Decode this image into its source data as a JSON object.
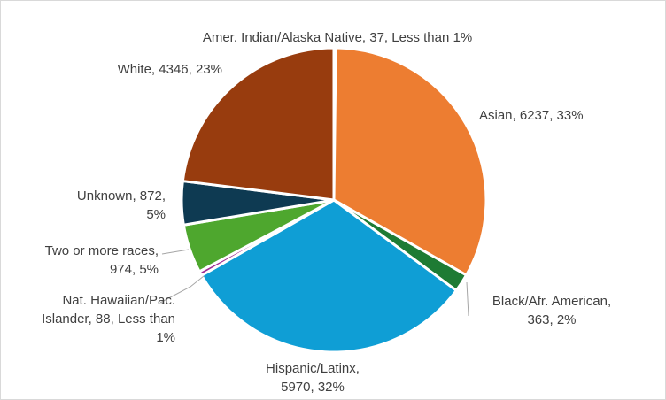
{
  "chart_data": {
    "type": "pie",
    "title": "",
    "slices": [
      {
        "name": "Amer. Indian/Alaska Native",
        "value": 37,
        "pct_label": "Less than 1%",
        "color": "#4a7ebb",
        "label_lines": [
          "Amer. Indian/Alaska Native, 37, Less than 1%"
        ]
      },
      {
        "name": "Asian",
        "value": 6237,
        "pct_label": "33%",
        "color": "#ed7d31",
        "label_lines": [
          "Asian, 6237, 33%"
        ]
      },
      {
        "name": "Black/Afr. American",
        "value": 363,
        "pct_label": "2%",
        "color": "#1e7b34",
        "label_lines": [
          "Black/Afr. American,",
          "363, 2%"
        ]
      },
      {
        "name": "Hispanic/Latinx",
        "value": 5970,
        "pct_label": "32%",
        "color": "#0f9ed5",
        "label_lines": [
          "Hispanic/Latinx,",
          "5970, 32%"
        ]
      },
      {
        "name": "Nat. Hawaiian/Pac. Islander",
        "value": 88,
        "pct_label": "Less than 1%",
        "color": "#a02b93",
        "label_lines": [
          "Nat. Hawaiian/Pac.",
          "Islander, 88, Less than",
          "1%"
        ]
      },
      {
        "name": "Two or more races",
        "value": 974,
        "pct_label": "5%",
        "color": "#4ea72e",
        "label_lines": [
          "Two or more races,",
          "974, 5%"
        ]
      },
      {
        "name": "Unknown",
        "value": 872,
        "pct_label": "5%",
        "color": "#0e3a52",
        "label_lines": [
          "Unknown, 872,",
          "5%"
        ]
      },
      {
        "name": "White",
        "value": 4346,
        "pct_label": "23%",
        "color": "#983c0e",
        "label_lines": [
          "White, 4346, 23%"
        ]
      }
    ],
    "legend": "none"
  }
}
